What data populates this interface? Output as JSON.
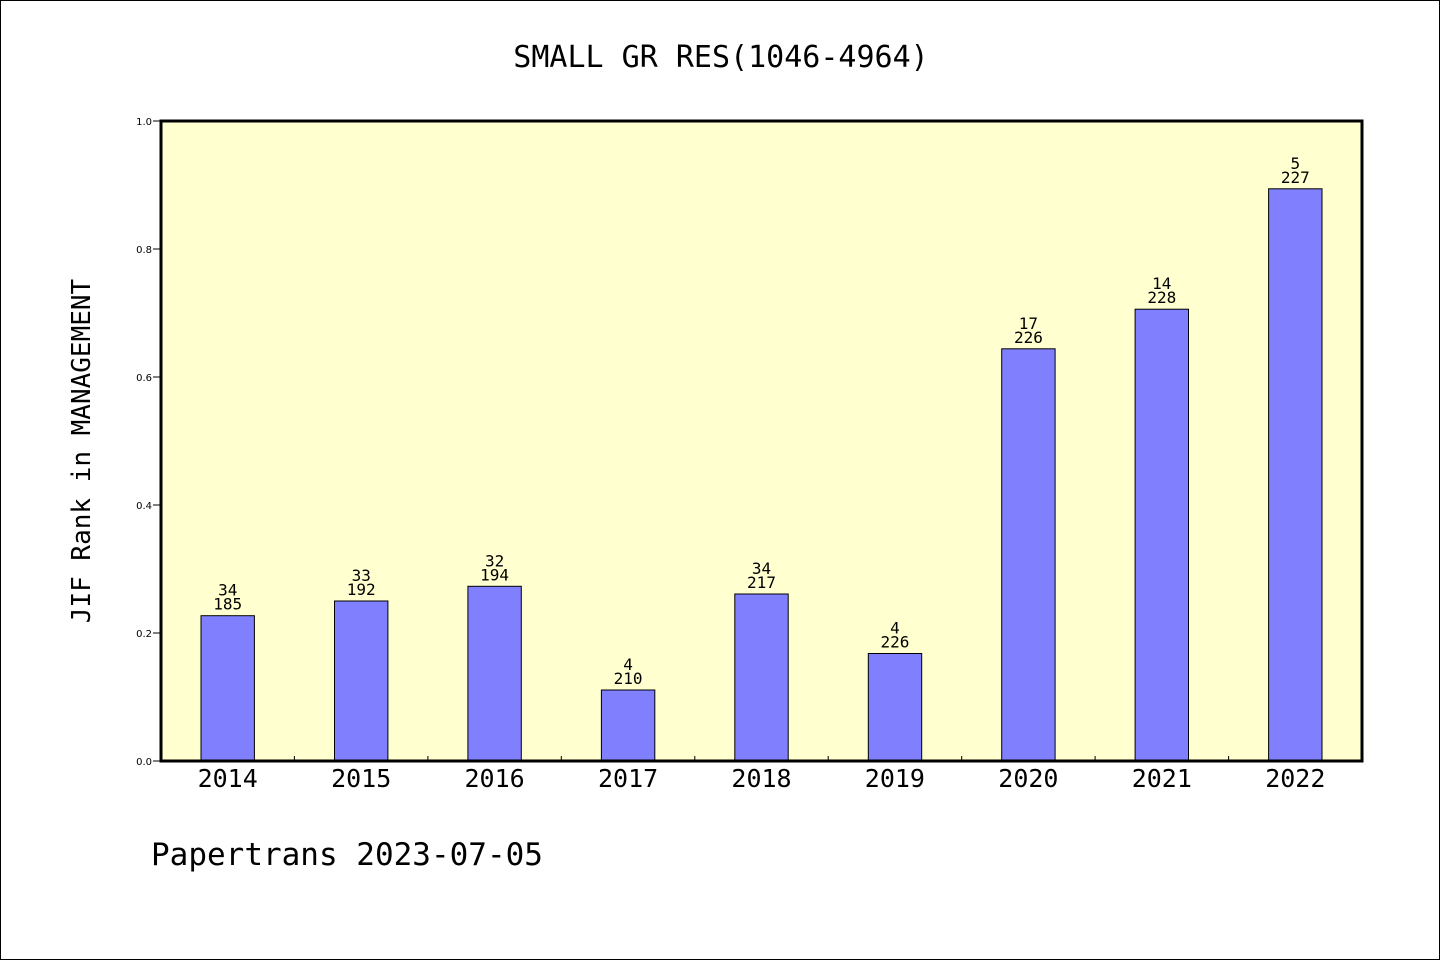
{
  "chart_data": {
    "type": "bar",
    "title": "SMALL GR RES(1046-4964)",
    "xlabel": "",
    "ylabel": "JIF Rank in MANAGEMENT",
    "ylim": [
      0,
      1.0
    ],
    "yticks": [
      "0.0",
      "0.2",
      "0.4",
      "0.6",
      "0.8",
      "1.0"
    ],
    "categories": [
      "2014",
      "2015",
      "2016",
      "2017",
      "2018",
      "2019",
      "2020",
      "2021",
      "2022"
    ],
    "values": [
      0.227,
      0.25,
      0.273,
      0.111,
      0.261,
      0.168,
      0.644,
      0.706,
      0.894
    ],
    "rank_labels": [
      "34",
      "33",
      "32",
      "4",
      "34",
      "4",
      "17",
      "14",
      "5"
    ],
    "total_labels": [
      "185",
      "192",
      "194",
      "210",
      "217",
      "226",
      "226",
      "228",
      "227"
    ],
    "grid": false,
    "legend": "none",
    "colors": {
      "bar": "#8080ff",
      "plot_background": "#ffffd0",
      "axis": "#000000"
    }
  },
  "footer": {
    "text": "Papertrans 2023-07-05"
  }
}
